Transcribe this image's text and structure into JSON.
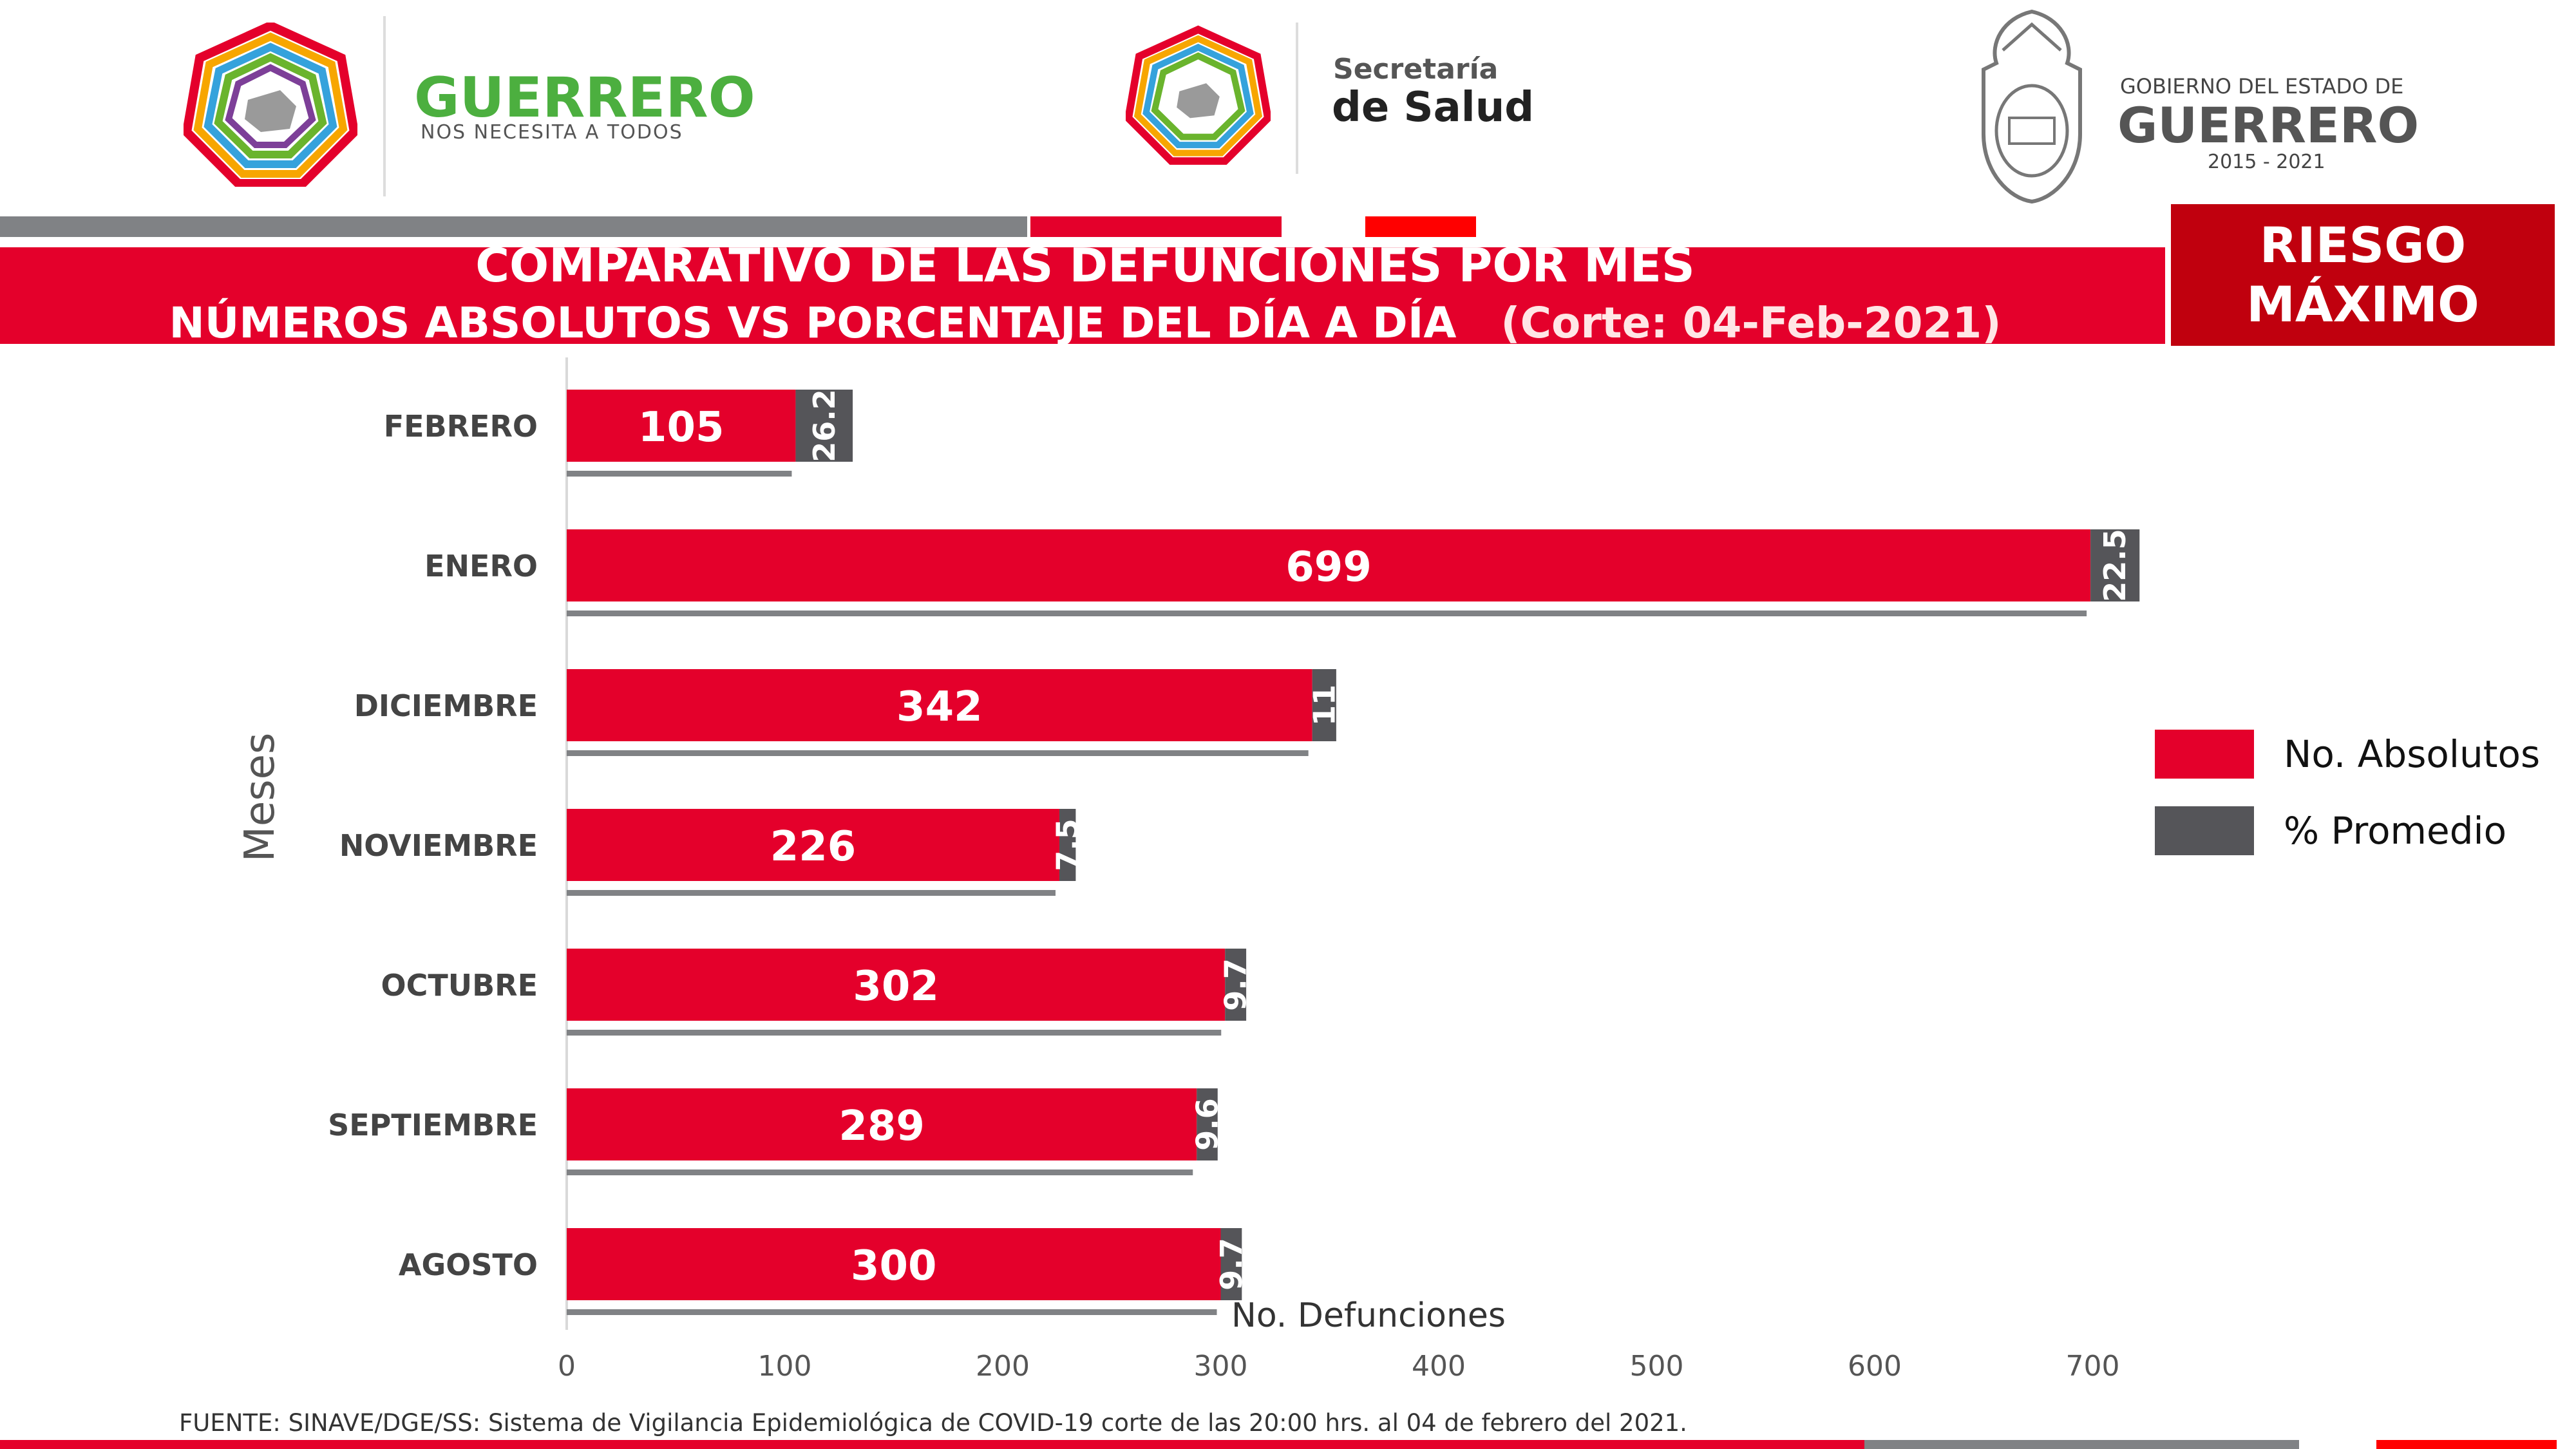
{
  "header": {
    "left_logo": {
      "title": "GUERRERO",
      "subtitle": "NOS NECESITA A TODOS"
    },
    "center_logo": {
      "line1": "Secretaría",
      "line2": "de Salud"
    },
    "right_logo": {
      "line1": "GOBIERNO DEL ESTADO DE",
      "line2": "GUERRERO",
      "line3": "2015 - 2021"
    }
  },
  "title": {
    "line1": "COMPARATIVO DE LAS DEFUNCIONES POR MES",
    "line2": "NÚMEROS ABSOLUTOS VS PORCENTAJE DEL DÍA A DÍA",
    "cutoff": "(Corte: 04-Feb-2021)"
  },
  "badge": {
    "line1": "RIESGO",
    "line2": "MÁXIMO"
  },
  "colors": {
    "absolute": "#e4002b",
    "percent": "#555559",
    "underline": "#808285",
    "band": "#e4002b",
    "gray_strip": "#808285"
  },
  "chart_data": {
    "type": "bar",
    "orientation": "horizontal",
    "stacked": true,
    "categories": [
      "FEBRERO",
      "ENERO",
      "DICIEMBRE",
      "NOVIEMBRE",
      "OCTUBRE",
      "SEPTIEMBRE",
      "AGOSTO"
    ],
    "series": [
      {
        "name": "No. Absolutos",
        "values": [
          105,
          699,
          342,
          226,
          302,
          289,
          300
        ]
      },
      {
        "name": "% Promedio",
        "values": [
          26.2,
          22.5,
          11,
          7.5,
          9.7,
          9.6,
          9.7
        ]
      }
    ],
    "xlabel": "No. Defunciones",
    "ylabel": "Meses",
    "xlim": [
      0,
      700
    ],
    "xticks": [
      0,
      100,
      200,
      300,
      400,
      500,
      600,
      700
    ],
    "legend_position": "right",
    "grid": false
  },
  "source": "FUENTE: SINAVE/DGE/SS: Sistema de Vigilancia Epidemiológica de COVID-19 corte de las 20:00 hrs. al 04 de  febrero del 2021."
}
